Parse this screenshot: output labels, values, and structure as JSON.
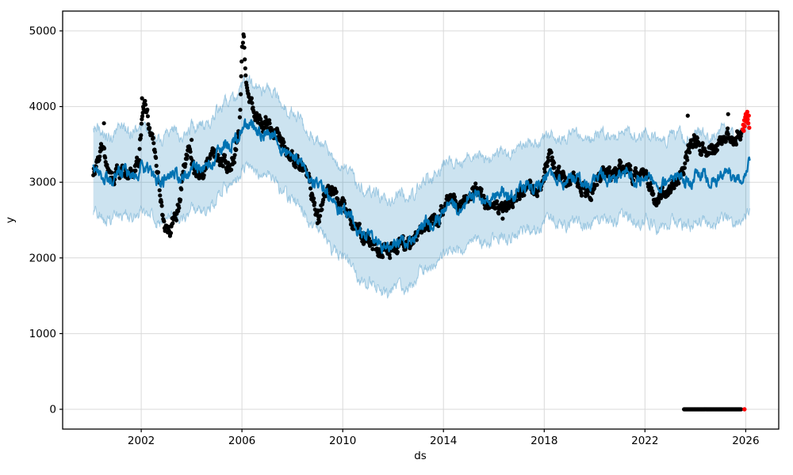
{
  "figure": {
    "background": "#ffffff"
  },
  "chart_data": {
    "type": "line",
    "title": "",
    "xlabel": "ds",
    "ylabel": "y",
    "xlim": [
      1998.88,
      2027.31
    ],
    "ylim": [
      -261,
      5262
    ],
    "x_tick_labels": [
      "2002",
      "2006",
      "2010",
      "2014",
      "2018",
      "2022",
      "2026"
    ],
    "x_tick_values": [
      2002,
      2006,
      2010,
      2014,
      2018,
      2022,
      2026
    ],
    "y_tick_labels": [
      "0",
      "1000",
      "2000",
      "3000",
      "4000",
      "5000"
    ],
    "y_tick_values": [
      0,
      1000,
      2000,
      3000,
      4000,
      5000
    ],
    "grid": true,
    "legend_position": "none",
    "colors": {
      "forecast_line": "#0072B2",
      "uncertainty_band": "rgba(0,114,178,0.2)",
      "band_edge": "rgba(0,114,178,0.3)",
      "observations": "#000000",
      "recent_points": "#ff0000",
      "grid": "#d9d9d9",
      "spine": "#000000"
    },
    "series": [
      {
        "name": "forecast",
        "type": "line",
        "color": "#0072B2",
        "x_start": 2000.1,
        "x_end": 2026.16,
        "anchors": [
          [
            2000.1,
            3150
          ],
          [
            2000.6,
            3080
          ],
          [
            2001.2,
            3110
          ],
          [
            2001.8,
            3160
          ],
          [
            2002.3,
            3120
          ],
          [
            2002.8,
            3040
          ],
          [
            2003.3,
            3080
          ],
          [
            2003.8,
            3130
          ],
          [
            2004.3,
            3170
          ],
          [
            2004.8,
            3280
          ],
          [
            2005.3,
            3440
          ],
          [
            2005.8,
            3620
          ],
          [
            2006.1,
            3720
          ],
          [
            2006.5,
            3730
          ],
          [
            2007.0,
            3650
          ],
          [
            2007.5,
            3520
          ],
          [
            2008.0,
            3340
          ],
          [
            2008.5,
            3170
          ],
          [
            2009.0,
            2960
          ],
          [
            2009.5,
            2780
          ],
          [
            2010.0,
            2600
          ],
          [
            2010.5,
            2430
          ],
          [
            2011.0,
            2280
          ],
          [
            2011.5,
            2190
          ],
          [
            2012.0,
            2160
          ],
          [
            2012.5,
            2220
          ],
          [
            2013.0,
            2340
          ],
          [
            2013.5,
            2480
          ],
          [
            2014.0,
            2610
          ],
          [
            2014.5,
            2700
          ],
          [
            2015.0,
            2760
          ],
          [
            2015.5,
            2790
          ],
          [
            2016.0,
            2800
          ],
          [
            2016.5,
            2840
          ],
          [
            2017.0,
            2890
          ],
          [
            2017.5,
            2950
          ],
          [
            2018.0,
            3020
          ],
          [
            2018.4,
            3070
          ],
          [
            2019.0,
            3010
          ],
          [
            2019.5,
            3030
          ],
          [
            2020.0,
            3040
          ],
          [
            2020.5,
            3060
          ],
          [
            2021.0,
            3090
          ],
          [
            2021.5,
            3080
          ],
          [
            2022.0,
            3040
          ],
          [
            2022.5,
            2990
          ],
          [
            2023.0,
            3030
          ],
          [
            2023.5,
            3050
          ],
          [
            2024.0,
            3040
          ],
          [
            2024.5,
            3050
          ],
          [
            2025.0,
            3060
          ],
          [
            2025.5,
            3090
          ],
          [
            2026.0,
            3140
          ],
          [
            2026.16,
            3210
          ]
        ]
      },
      {
        "name": "uncertainty_interval",
        "type": "area",
        "color": "rgba(0,114,178,0.2)",
        "halfwidth_anchors": [
          [
            2000.1,
            560
          ],
          [
            2004.0,
            550
          ],
          [
            2006.0,
            560
          ],
          [
            2009.0,
            580
          ],
          [
            2011.5,
            620
          ],
          [
            2014.0,
            580
          ],
          [
            2018.0,
            560
          ],
          [
            2022.0,
            570
          ],
          [
            2026.16,
            580
          ]
        ]
      },
      {
        "name": "observations",
        "type": "scatter",
        "color": "#000000",
        "x_start": 2000.1,
        "x_end": 2025.85,
        "anchors": [
          [
            2000.1,
            3120
          ],
          [
            2000.35,
            3250
          ],
          [
            2000.5,
            3550
          ],
          [
            2000.65,
            3150
          ],
          [
            2001.0,
            3060
          ],
          [
            2001.3,
            3120
          ],
          [
            2001.6,
            3080
          ],
          [
            2001.9,
            3300
          ],
          [
            2002.05,
            3900
          ],
          [
            2002.15,
            4040
          ],
          [
            2002.3,
            3720
          ],
          [
            2002.5,
            3480
          ],
          [
            2002.7,
            3000
          ],
          [
            2002.9,
            2500
          ],
          [
            2003.05,
            2260
          ],
          [
            2003.25,
            2450
          ],
          [
            2003.5,
            2700
          ],
          [
            2003.7,
            3340
          ],
          [
            2003.9,
            3400
          ],
          [
            2004.1,
            3120
          ],
          [
            2004.35,
            3060
          ],
          [
            2004.6,
            3280
          ],
          [
            2004.85,
            3430
          ],
          [
            2005.1,
            3300
          ],
          [
            2005.4,
            3220
          ],
          [
            2005.7,
            3320
          ],
          [
            2005.9,
            3700
          ],
          [
            2006.0,
            4650
          ],
          [
            2006.06,
            4930
          ],
          [
            2006.15,
            4420
          ],
          [
            2006.3,
            4100
          ],
          [
            2006.5,
            3950
          ],
          [
            2006.7,
            3820
          ],
          [
            2007.0,
            3760
          ],
          [
            2007.3,
            3660
          ],
          [
            2007.6,
            3560
          ],
          [
            2008.0,
            3320
          ],
          [
            2008.3,
            3220
          ],
          [
            2008.6,
            3120
          ],
          [
            2008.9,
            2680
          ],
          [
            2009.05,
            2520
          ],
          [
            2009.3,
            2860
          ],
          [
            2009.6,
            2900
          ],
          [
            2009.9,
            2760
          ],
          [
            2010.2,
            2520
          ],
          [
            2010.5,
            2420
          ],
          [
            2010.8,
            2320
          ],
          [
            2011.1,
            2160
          ],
          [
            2011.4,
            2110
          ],
          [
            2011.7,
            2150
          ],
          [
            2012.0,
            2100
          ],
          [
            2012.3,
            2130
          ],
          [
            2012.6,
            2200
          ],
          [
            2012.9,
            2260
          ],
          [
            2013.2,
            2400
          ],
          [
            2013.5,
            2460
          ],
          [
            2013.8,
            2560
          ],
          [
            2014.1,
            2700
          ],
          [
            2014.4,
            2760
          ],
          [
            2014.7,
            2710
          ],
          [
            2015.0,
            2850
          ],
          [
            2015.3,
            2890
          ],
          [
            2015.6,
            2800
          ],
          [
            2015.9,
            2740
          ],
          [
            2016.2,
            2610
          ],
          [
            2016.5,
            2700
          ],
          [
            2016.8,
            2800
          ],
          [
            2017.1,
            2850
          ],
          [
            2017.4,
            2900
          ],
          [
            2017.7,
            2950
          ],
          [
            2018.0,
            3090
          ],
          [
            2018.2,
            3340
          ],
          [
            2018.35,
            3210
          ],
          [
            2018.6,
            3110
          ],
          [
            2018.9,
            3050
          ],
          [
            2019.2,
            3000
          ],
          [
            2019.5,
            2950
          ],
          [
            2019.8,
            2860
          ],
          [
            2020.1,
            3000
          ],
          [
            2020.4,
            3100
          ],
          [
            2020.7,
            3150
          ],
          [
            2021.0,
            3200
          ],
          [
            2021.3,
            3160
          ],
          [
            2021.6,
            3110
          ],
          [
            2021.9,
            3150
          ],
          [
            2022.1,
            3050
          ],
          [
            2022.35,
            2750
          ],
          [
            2022.6,
            2850
          ],
          [
            2022.9,
            2900
          ],
          [
            2023.2,
            2960
          ],
          [
            2023.5,
            3160
          ],
          [
            2023.7,
            3420
          ],
          [
            2023.9,
            3560
          ],
          [
            2024.1,
            3500
          ],
          [
            2024.35,
            3410
          ],
          [
            2024.6,
            3450
          ],
          [
            2024.9,
            3500
          ],
          [
            2025.2,
            3550
          ],
          [
            2025.5,
            3610
          ],
          [
            2025.85,
            3700
          ]
        ],
        "outliers": [
          [
            2000.52,
            3780
          ],
          [
            2002.03,
            4110
          ],
          [
            2004.0,
            3560
          ],
          [
            2009.0,
            2460
          ],
          [
            2016.35,
            2520
          ],
          [
            2023.7,
            3880
          ],
          [
            2025.3,
            3900
          ]
        ]
      },
      {
        "name": "observations_at_zero",
        "type": "scatter",
        "color": "#000000",
        "x_start": 2023.55,
        "x_end": 2025.82,
        "value": 0
      },
      {
        "name": "recent_observations_red",
        "type": "scatter",
        "color": "#ff0000",
        "points": [
          [
            2025.88,
            3700
          ],
          [
            2025.9,
            3760
          ],
          [
            2025.92,
            3680
          ],
          [
            2025.94,
            3820
          ],
          [
            2025.96,
            3740
          ],
          [
            2025.98,
            3860
          ],
          [
            2026.0,
            3900
          ],
          [
            2026.02,
            3800
          ],
          [
            2026.04,
            3870
          ],
          [
            2026.06,
            3930
          ],
          [
            2026.08,
            3830
          ],
          [
            2026.1,
            3780
          ],
          [
            2026.12,
            3880
          ],
          [
            2026.14,
            3720
          ]
        ],
        "zero_points": [
          [
            2025.95,
            0
          ]
        ]
      }
    ],
    "render_hints": {
      "seed": 20260212,
      "line_noise": 130,
      "band_noise": 130,
      "dot_noise": 140,
      "yearly_amplitude": 55,
      "dot_step": 0.018,
      "line_step": 0.02,
      "marker_radius": 2.6,
      "red_marker_radius": 2.7,
      "line_width": 2.2
    }
  }
}
